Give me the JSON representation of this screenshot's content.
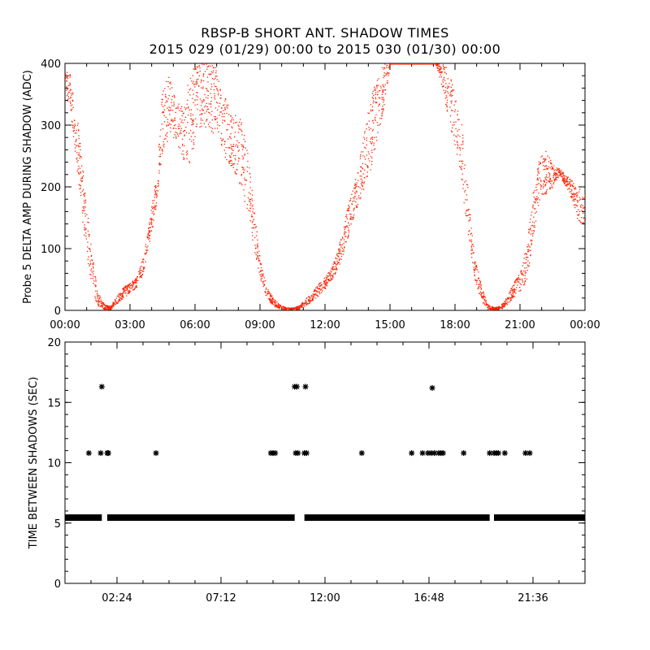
{
  "title": "RBSP-B SHORT ANT. SHADOW TIMES",
  "subtitle": "2015 029 (01/29) 00:00 to 2015 030 (01/30) 00:00",
  "colors": {
    "upper_points": "#ff2000",
    "lower_points": "#000000",
    "axes": "#000000"
  },
  "chart_data": [
    {
      "type": "scatter",
      "ylabel": "Probe 5 DELTA AMP DURING SHADOW (ADC)",
      "xlabel": "",
      "xlim": [
        0,
        24
      ],
      "ylim": [
        0,
        400
      ],
      "x_tick_labels": [
        "00:00",
        "03:00",
        "06:00",
        "09:00",
        "12:00",
        "15:00",
        "18:00",
        "21:00",
        "00:00"
      ],
      "y_tick_labels": [
        "0",
        "100",
        "200",
        "300",
        "400"
      ],
      "x_unit": "hours since 2015 029 00:00",
      "envelope": {
        "x": [
          0.0,
          0.3,
          0.6,
          0.9,
          1.2,
          1.5,
          1.8,
          2.1,
          2.4,
          2.7,
          3.0,
          3.3,
          3.6,
          3.9,
          4.2,
          4.5,
          4.8,
          5.1,
          5.4,
          5.7,
          6.0,
          6.3,
          6.6,
          6.9,
          7.2,
          7.5,
          7.8,
          8.1,
          8.4,
          8.7,
          9.0,
          9.3,
          9.6,
          9.9,
          10.2,
          10.5,
          10.8,
          11.1,
          11.4,
          11.7,
          12.0,
          12.3,
          12.6,
          12.9,
          13.2,
          13.5,
          13.8,
          14.1,
          14.4,
          14.7,
          15.0,
          16.5,
          16.8,
          17.1,
          17.4,
          17.7,
          18.0,
          18.3,
          18.6,
          18.9,
          19.2,
          19.5,
          19.8,
          20.1,
          20.4,
          20.7,
          21.0,
          21.3,
          21.6,
          21.9,
          22.2,
          22.5,
          22.8,
          23.1,
          23.4,
          23.7,
          24.0
        ],
        "low": [
          360,
          300,
          210,
          110,
          35,
          8,
          2,
          2,
          12,
          22,
          28,
          38,
          60,
          110,
          170,
          260,
          280,
          270,
          250,
          220,
          280,
          300,
          295,
          280,
          260,
          240,
          225,
          200,
          160,
          100,
          50,
          20,
          8,
          2,
          2,
          2,
          2,
          8,
          15,
          25,
          35,
          50,
          70,
          100,
          140,
          170,
          200,
          230,
          280,
          330,
          400,
          400,
          400,
          400,
          360,
          310,
          260,
          200,
          120,
          50,
          15,
          2,
          2,
          2,
          10,
          22,
          30,
          50,
          120,
          180,
          190,
          200,
          220,
          200,
          180,
          140,
          140
        ],
        "high": [
          400,
          380,
          300,
          200,
          100,
          30,
          10,
          8,
          25,
          40,
          45,
          55,
          90,
          150,
          220,
          370,
          380,
          340,
          330,
          380,
          400,
          400,
          400,
          400,
          360,
          340,
          320,
          310,
          260,
          170,
          80,
          40,
          20,
          10,
          5,
          5,
          8,
          20,
          30,
          45,
          55,
          70,
          100,
          150,
          190,
          230,
          290,
          350,
          380,
          400,
          400,
          400,
          400,
          400,
          400,
          390,
          350,
          300,
          190,
          90,
          40,
          10,
          5,
          8,
          25,
          45,
          65,
          110,
          200,
          250,
          260,
          240,
          230,
          220,
          210,
          200,
          190
        ]
      }
    },
    {
      "type": "scatter",
      "ylabel": "TIME BETWEEN SHADOWS (SEC)",
      "xlabel": "",
      "xlim": [
        0,
        24
      ],
      "ylim": [
        0,
        20
      ],
      "x_tick_labels": [
        "02:24",
        "07:12",
        "12:00",
        "16:48",
        "21:36"
      ],
      "y_tick_labels": [
        "0",
        "5",
        "10",
        "15",
        "20"
      ],
      "x_unit": "hours since 2015 029 00:00",
      "baseline": {
        "y": 5.45,
        "segments": [
          [
            0.0,
            1.7
          ],
          [
            1.95,
            10.6
          ],
          [
            11.05,
            19.6
          ],
          [
            19.8,
            24.0
          ]
        ]
      },
      "points": [
        {
          "x": 1.1,
          "y": 10.8
        },
        {
          "x": 1.65,
          "y": 10.8
        },
        {
          "x": 1.7,
          "y": 16.3
        },
        {
          "x": 1.95,
          "y": 10.8
        },
        {
          "x": 2.0,
          "y": 10.8
        },
        {
          "x": 4.2,
          "y": 10.8
        },
        {
          "x": 9.5,
          "y": 10.8
        },
        {
          "x": 9.6,
          "y": 10.8
        },
        {
          "x": 9.7,
          "y": 10.8
        },
        {
          "x": 10.6,
          "y": 16.3
        },
        {
          "x": 10.65,
          "y": 10.8
        },
        {
          "x": 10.7,
          "y": 16.3
        },
        {
          "x": 10.75,
          "y": 10.8
        },
        {
          "x": 11.05,
          "y": 10.8
        },
        {
          "x": 11.1,
          "y": 16.3
        },
        {
          "x": 11.15,
          "y": 10.8
        },
        {
          "x": 13.7,
          "y": 10.8
        },
        {
          "x": 16.0,
          "y": 10.8
        },
        {
          "x": 16.5,
          "y": 10.8
        },
        {
          "x": 16.75,
          "y": 10.8
        },
        {
          "x": 16.9,
          "y": 10.8
        },
        {
          "x": 16.95,
          "y": 16.2
        },
        {
          "x": 17.05,
          "y": 10.8
        },
        {
          "x": 17.25,
          "y": 10.8
        },
        {
          "x": 17.35,
          "y": 10.8
        },
        {
          "x": 17.45,
          "y": 10.8
        },
        {
          "x": 18.4,
          "y": 10.8
        },
        {
          "x": 19.6,
          "y": 10.8
        },
        {
          "x": 19.8,
          "y": 10.8
        },
        {
          "x": 19.9,
          "y": 10.8
        },
        {
          "x": 20.0,
          "y": 10.8
        },
        {
          "x": 20.3,
          "y": 10.8
        },
        {
          "x": 21.25,
          "y": 10.8
        },
        {
          "x": 21.45,
          "y": 10.8
        }
      ]
    }
  ]
}
